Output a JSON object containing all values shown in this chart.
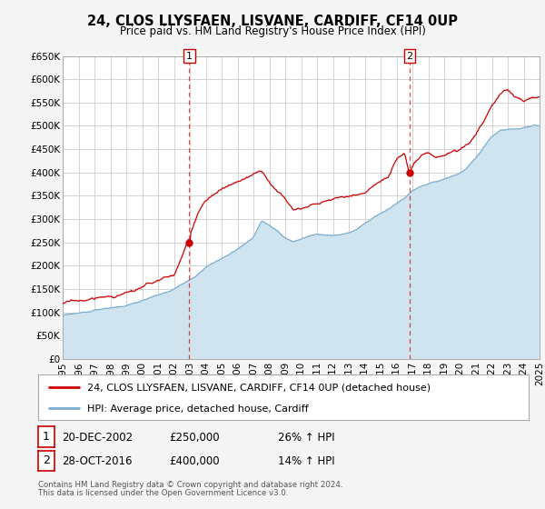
{
  "title": "24, CLOS LLYSFAEN, LISVANE, CARDIFF, CF14 0UP",
  "subtitle": "Price paid vs. HM Land Registry's House Price Index (HPI)",
  "xlim": [
    1995,
    2025
  ],
  "ylim": [
    0,
    650000
  ],
  "yticks": [
    0,
    50000,
    100000,
    150000,
    200000,
    250000,
    300000,
    350000,
    400000,
    450000,
    500000,
    550000,
    600000,
    650000
  ],
  "ytick_labels": [
    "£0",
    "£50K",
    "£100K",
    "£150K",
    "£200K",
    "£250K",
    "£300K",
    "£350K",
    "£400K",
    "£450K",
    "£500K",
    "£550K",
    "£600K",
    "£650K"
  ],
  "xticks": [
    1995,
    1996,
    1997,
    1998,
    1999,
    2000,
    2001,
    2002,
    2003,
    2004,
    2005,
    2006,
    2007,
    2008,
    2009,
    2010,
    2011,
    2012,
    2013,
    2014,
    2015,
    2016,
    2017,
    2018,
    2019,
    2020,
    2021,
    2022,
    2023,
    2024,
    2025
  ],
  "red_line_color": "#cc0000",
  "blue_line_color": "#7aadcf",
  "blue_fill_color": "#d0e4f0",
  "marker1_x": 2002.97,
  "marker1_y": 250000,
  "marker2_x": 2016.83,
  "marker2_y": 400000,
  "vline1_x": 2002.97,
  "vline2_x": 2016.83,
  "legend_label_red": "24, CLOS LLYSFAEN, LISVANE, CARDIFF, CF14 0UP (detached house)",
  "legend_label_blue": "HPI: Average price, detached house, Cardiff",
  "sale1_date": "20-DEC-2002",
  "sale1_price": "£250,000",
  "sale1_hpi": "26% ↑ HPI",
  "sale2_date": "28-OCT-2016",
  "sale2_price": "£400,000",
  "sale2_hpi": "14% ↑ HPI",
  "footer1": "Contains HM Land Registry data © Crown copyright and database right 2024.",
  "footer2": "This data is licensed under the Open Government Licence v3.0.",
  "bg_color": "#f5f5f5",
  "plot_bg_color": "#ffffff",
  "grid_color": "#cccccc"
}
